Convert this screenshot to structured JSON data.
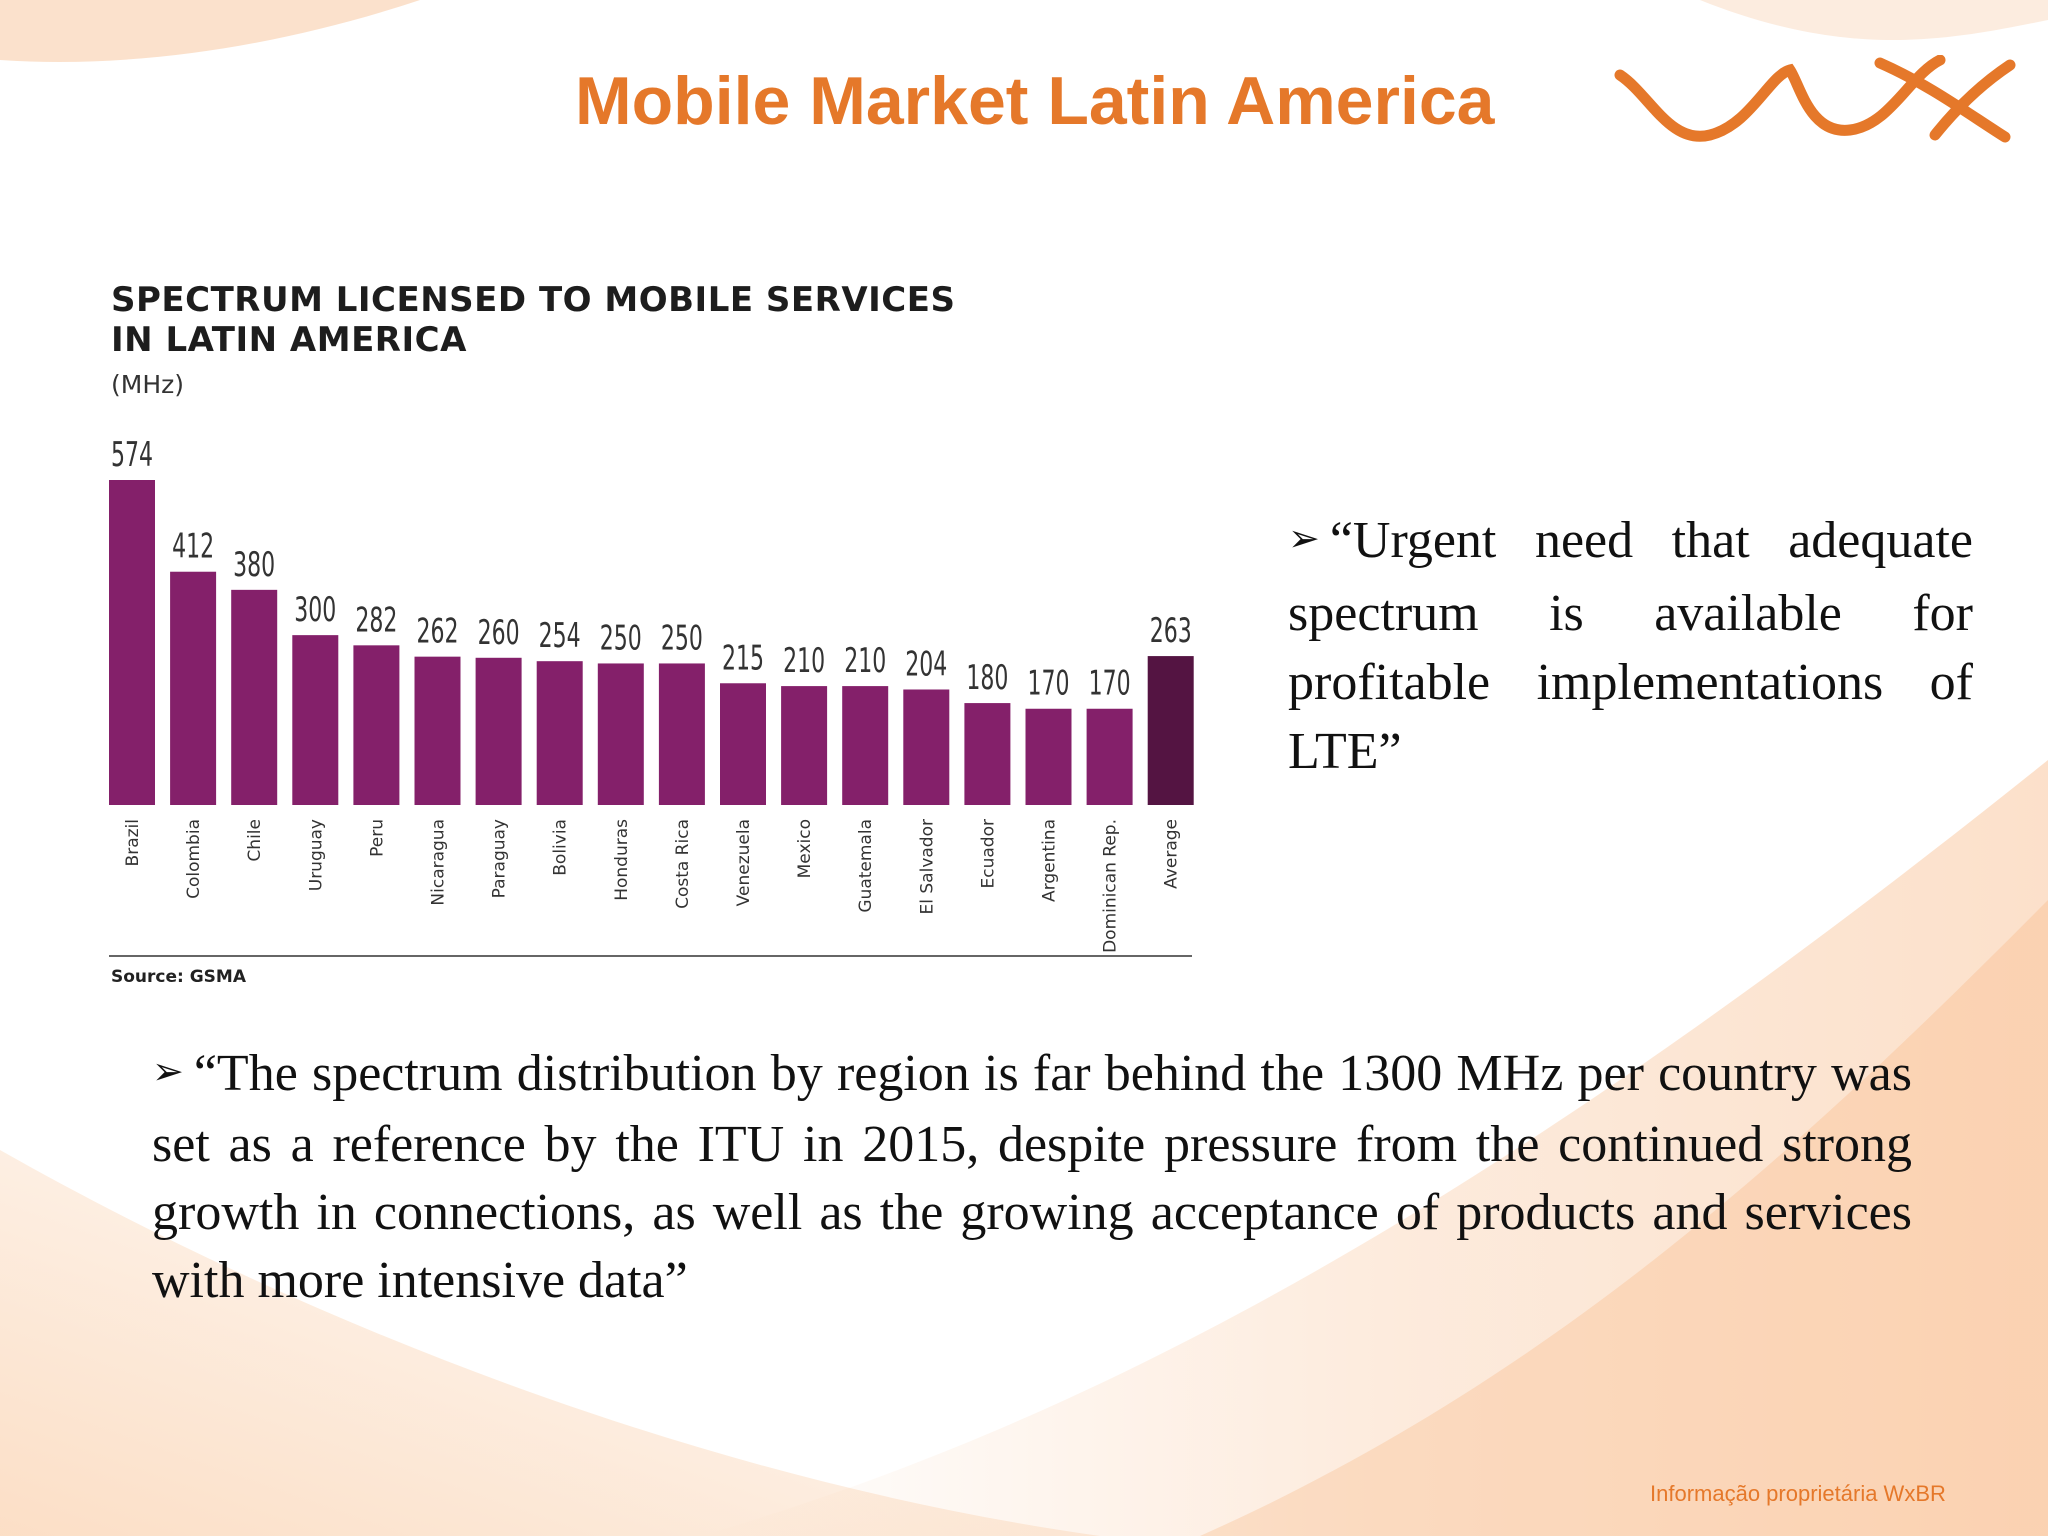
{
  "slide": {
    "title": "Mobile Market Latin America",
    "footer": "Informação proprietária WxBR",
    "accent_color": "#e5782a",
    "logo_icon": "wxbr-logo"
  },
  "chart_data": {
    "type": "bar",
    "title_line1": "SPECTRUM LICENSED TO MOBILE SERVICES",
    "title_line2": "IN LATIN AMERICA",
    "unit": "(MHz)",
    "source": "Source: GSMA",
    "categories": [
      "Brazil",
      "Colombia",
      "Chile",
      "Uruguay",
      "Peru",
      "Nicaragua",
      "Paraguay",
      "Bolivia",
      "Honduras",
      "Costa Rica",
      "Venezuela",
      "Mexico",
      "Guatemala",
      "El Salvador",
      "Ecuador",
      "Argentina",
      "Dominican Rep.",
      "Average"
    ],
    "values": [
      574,
      412,
      380,
      300,
      282,
      262,
      260,
      254,
      250,
      250,
      215,
      210,
      210,
      204,
      180,
      170,
      170,
      263
    ],
    "ylim": [
      0,
      574
    ],
    "grid": false,
    "legend": "none",
    "bar_color": "#84206a",
    "highlight_color": "#541442",
    "highlight_category": "Average"
  },
  "quotes": [
    {
      "bullet": "➢",
      "text": "“Urgent need that adequate spectrum is available for profitable implementations of LTE”"
    },
    {
      "bullet": "➢",
      "text": "“The spectrum distribution by region is far behind the 1300 MHz per country was set as a reference by the ITU in 2015, despite pressure from the continued strong growth in connections, as well as the growing acceptance of products and services with more intensive data”"
    }
  ]
}
